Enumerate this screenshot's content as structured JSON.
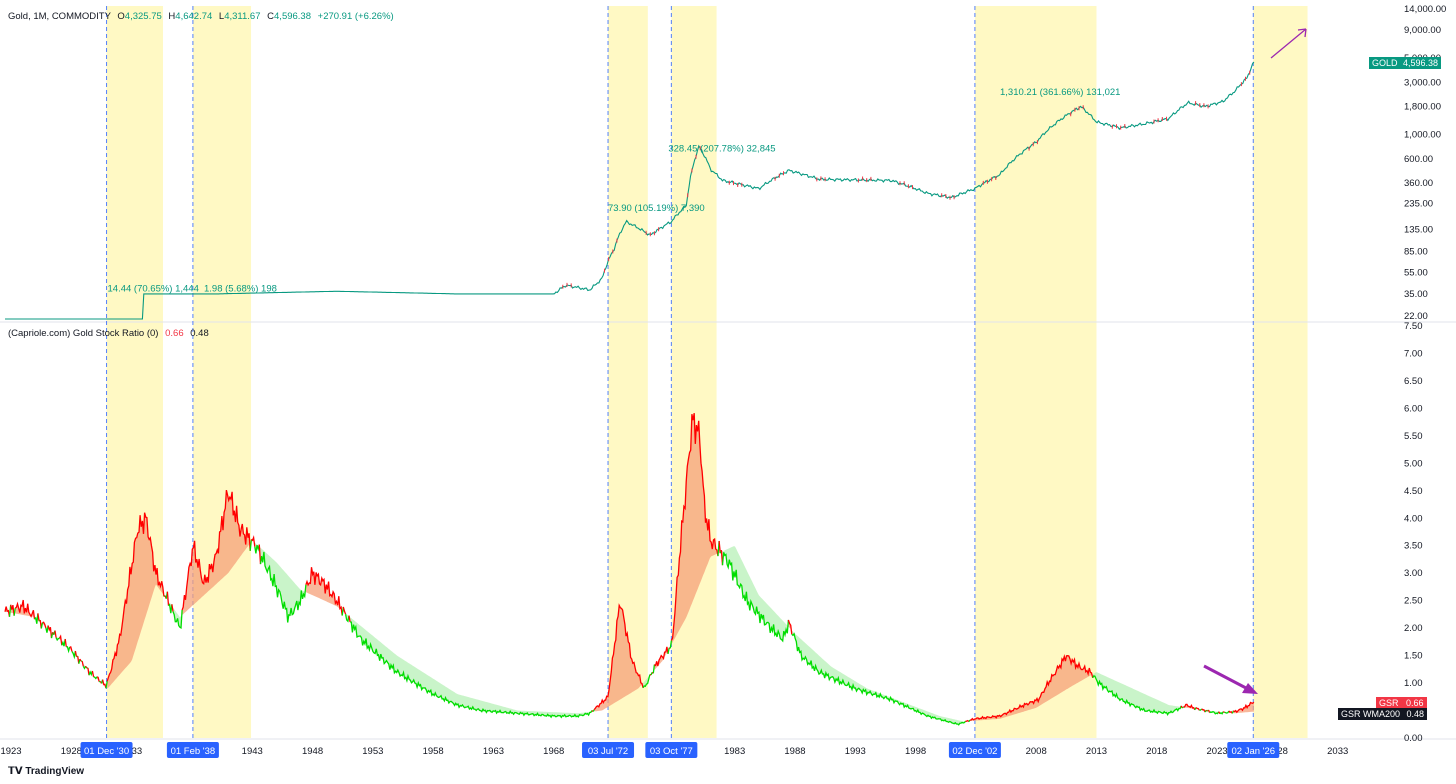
{
  "header": {
    "symbol": "Gold, 1M, COMMODITY",
    "o_label": "O",
    "o": "4,325.75",
    "h_label": "H",
    "h": "4,642.74",
    "l_label": "L",
    "l": "4,311.67",
    "c_label": "C",
    "c": "4,596.38",
    "change": "+270.91 (+6.26%)"
  },
  "indicator_header": {
    "name": "(Capriole.com) Gold Stock Ratio (0)",
    "v1": "0.66",
    "v2": "0.48"
  },
  "price_tag": {
    "label": "GOLD",
    "value": "4,596.38"
  },
  "gsr_tag": {
    "label": "GSR",
    "value": "0.66"
  },
  "wma_tag": {
    "label": "GSR WMA200",
    "value": "0.48"
  },
  "branding": "TradingView",
  "colors": {
    "up": "#089981",
    "down": "#f23645",
    "highlight": "#fff9c4",
    "vline": "#2962ff",
    "gsr_above": "#ff0000",
    "gsr_below": "#00dd00",
    "band_above": "#f5a07a",
    "band_below": "#b7f0b7",
    "arrow": "#9c27b0",
    "date_tag": "#2962ff"
  },
  "chart_data": [
    {
      "type": "line",
      "name_shown": "Gold, 1M, COMMODITY",
      "scale": "log",
      "ylim": [
        22,
        14000
      ],
      "xlim": [
        1922.5,
        2038
      ],
      "y_ticks": [
        "14,000.00",
        "9,000.00",
        "5,000.00",
        "3,000.00",
        "1,800.00",
        "1,000.00",
        "600.00",
        "360.00",
        "235.00",
        "135.00",
        "85.00",
        "55.00",
        "35.00",
        "22.00"
      ],
      "y_tick_values": [
        14000,
        9000,
        5000,
        3000,
        1800,
        1000,
        600,
        360,
        235,
        135,
        85,
        55,
        35,
        22
      ],
      "series": [
        {
          "x": [
            1922.5,
            1934.0,
            1934.0,
            1940,
            1950,
            1960,
            1968,
            1969,
            1971,
            1972,
            1973,
            1974,
            1975,
            1976,
            1977.75,
            1979,
            1980.05,
            1981,
            1982,
            1985,
            1987.5,
            1990,
            1993,
            1996,
            1999,
            2001,
            2002.92,
            2005,
            2008,
            2011.7,
            2013,
            2015,
            2017,
            2019,
            2020.6,
            2022,
            2023.5,
            2024.5,
            2025.5,
            2026.05
          ],
          "y": [
            20.67,
            20.67,
            35,
            35,
            37,
            35,
            35,
            42,
            38,
            48,
            90,
            160,
            140,
            120,
            160,
            225,
            780,
            480,
            380,
            320,
            470,
            390,
            385,
            380,
            290,
            265,
            320,
            430,
            850,
            1800,
            1300,
            1150,
            1250,
            1400,
            1950,
            1800,
            2000,
            2500,
            3300,
            4596
          ]
        }
      ],
      "annotations": [
        {
          "text": "14.44 (70.65%) 1,444",
          "x": 1931,
          "y": 37
        },
        {
          "text": "1.98 (5.68%) 198",
          "x": 1939,
          "y": 37
        },
        {
          "text": "73.90 (105.19%) 7,390",
          "x": 1972.5,
          "y": 200
        },
        {
          "text": "328.45 (207.78%) 32,845",
          "x": 1977.5,
          "y": 700
        },
        {
          "text": "1,310.21 (361.66%) 131,021",
          "x": 2005,
          "y": 2300
        }
      ]
    },
    {
      "type": "line",
      "name_shown": "(Capriole.com) Gold Stock Ratio (0)",
      "ylim": [
        0,
        7.5
      ],
      "y_ticks": [
        "7.50",
        "7.00",
        "6.50",
        "6.00",
        "5.50",
        "5.00",
        "4.50",
        "4.00",
        "3.50",
        "3.00",
        "2.50",
        "2.00",
        "1.50",
        "1.00",
        "0.50",
        "0.00"
      ],
      "y_tick_values": [
        7.5,
        7,
        6.5,
        6,
        5.5,
        5,
        4.5,
        4,
        3.5,
        3,
        2.5,
        2,
        1.5,
        1,
        0.5,
        0
      ],
      "x_ticks": [
        "1923",
        "1928",
        "1933",
        "1943",
        "1948",
        "1953",
        "1958",
        "1963",
        "1968",
        "1973",
        "1983",
        "1988",
        "1993",
        "1998",
        "2008",
        "2013",
        "2018",
        "2023",
        "2028",
        "2033"
      ],
      "x_tick_values": [
        1923,
        1928,
        1933,
        1943,
        1948,
        1953,
        1958,
        1963,
        1968,
        1973,
        1983,
        1988,
        1993,
        1998,
        2008,
        2013,
        2018,
        2023,
        2028,
        2033
      ],
      "series": [
        {
          "name": "GSR",
          "x": [
            1922.5,
            1924,
            1926,
            1928,
            1929.5,
            1930.9,
            1932,
            1933.5,
            1934.2,
            1935,
            1936,
            1937,
            1938.1,
            1939,
            1940,
            1941,
            1942,
            1943.3,
            1944,
            1945.3,
            1946,
            1947,
            1948,
            1949,
            1950,
            1952,
            1955,
            1958,
            1960,
            1962,
            1965,
            1968,
            1970,
            1971,
            1972.5,
            1973.5,
            1974.5,
            1975.5,
            1976.5,
            1977.8,
            1978.5,
            1979.5,
            1980.1,
            1980.5,
            1981,
            1982.5,
            1984,
            1986,
            1987,
            1987.5,
            1988.5,
            1990,
            1993,
            1996,
            1999,
            2001.5,
            2002.9,
            2005,
            2007,
            2008.2,
            2009,
            2010.5,
            2011.5,
            2012.5,
            2013.2,
            2015,
            2017,
            2019,
            2020.5,
            2021,
            2023,
            2024.5,
            2025.3,
            2026.05
          ],
          "y": [
            2.3,
            2.4,
            2.0,
            1.6,
            1.2,
            0.95,
            1.8,
            3.8,
            4.0,
            3.0,
            2.5,
            2.0,
            3.5,
            2.8,
            3.3,
            4.5,
            3.8,
            3.5,
            3.2,
            2.6,
            2.2,
            2.5,
            3.0,
            2.8,
            2.5,
            1.8,
            1.2,
            0.8,
            0.6,
            0.5,
            0.45,
            0.4,
            0.4,
            0.45,
            0.75,
            2.5,
            1.4,
            0.9,
            1.35,
            1.7,
            3.5,
            5.8,
            5.5,
            4.2,
            3.6,
            3.2,
            2.5,
            2.0,
            1.8,
            2.1,
            1.5,
            1.2,
            0.9,
            0.7,
            0.4,
            0.25,
            0.35,
            0.4,
            0.6,
            0.7,
            1.0,
            1.5,
            1.3,
            1.2,
            1.0,
            0.7,
            0.5,
            0.45,
            0.6,
            0.55,
            0.45,
            0.48,
            0.55,
            0.66
          ]
        },
        {
          "name": "GSR WMA200",
          "x": [
            1922.5,
            1925,
            1928,
            1930,
            1931,
            1933,
            1935,
            1937,
            1939,
            1941,
            1943,
            1945,
            1947,
            1950,
            1955,
            1960,
            1965,
            1970,
            1972,
            1975,
            1977,
            1979,
            1981,
            1983,
            1985,
            1988,
            1991,
            1994,
            1997,
            2000,
            2002,
            2005,
            2008,
            2011,
            2013,
            2016,
            2019,
            2022,
            2024.5,
            2026.05
          ],
          "y": [
            2.3,
            2.2,
            1.6,
            1.1,
            0.9,
            1.4,
            2.8,
            2.2,
            2.6,
            3.0,
            3.6,
            3.2,
            2.7,
            2.4,
            1.5,
            0.8,
            0.5,
            0.45,
            0.5,
            0.9,
            1.4,
            2.2,
            3.3,
            3.5,
            2.6,
            1.9,
            1.3,
            0.9,
            0.65,
            0.4,
            0.3,
            0.35,
            0.55,
            0.95,
            1.2,
            0.9,
            0.6,
            0.5,
            0.45,
            0.48
          ]
        }
      ]
    }
  ],
  "highlight_periods": [
    {
      "from": 1930.92,
      "to": 1935.6,
      "tag": "01 Dec '30"
    },
    {
      "from": 1938.08,
      "to": 1942.9,
      "tag": "01 Feb '38"
    },
    {
      "from": 1972.5,
      "to": 1975.8,
      "tag": "03 Jul '72"
    },
    {
      "from": 1977.75,
      "to": 1981.5,
      "tag": "03 Oct '77"
    },
    {
      "from": 2002.92,
      "to": 2013.0,
      "tag": "02 Dec '02"
    },
    {
      "from": 2026.0,
      "to": 2030.5,
      "tag": "02 Jan '26"
    }
  ]
}
